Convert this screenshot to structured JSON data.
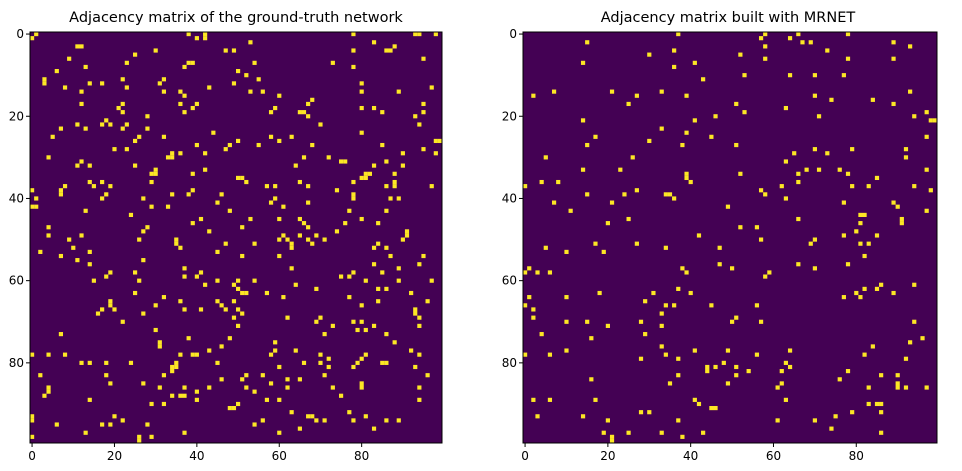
{
  "chart_data": [
    {
      "type": "heatmap",
      "title": "Adjacency matrix of the ground-truth network",
      "size": 100,
      "xlim": [
        0,
        99
      ],
      "ylim": [
        99,
        0
      ],
      "xticks": [
        0,
        20,
        40,
        60,
        80
      ],
      "yticks": [
        0,
        20,
        40,
        60,
        80
      ],
      "colormap": [
        "#440154",
        "#fde725"
      ],
      "values": [
        0,
        1
      ],
      "density": 0.04,
      "seed": 7,
      "symmetric": true
    },
    {
      "type": "heatmap",
      "title": "Adjacency matrix built with MRNET",
      "size": 100,
      "xlim": [
        0,
        99
      ],
      "ylim": [
        99,
        0
      ],
      "xticks": [
        0,
        20,
        40,
        60,
        80
      ],
      "yticks": [
        0,
        20,
        40,
        60,
        80
      ],
      "colormap": [
        "#440154",
        "#fde725"
      ],
      "values": [
        0,
        1
      ],
      "density": 0.025,
      "seed": 19,
      "symmetric": true
    }
  ]
}
